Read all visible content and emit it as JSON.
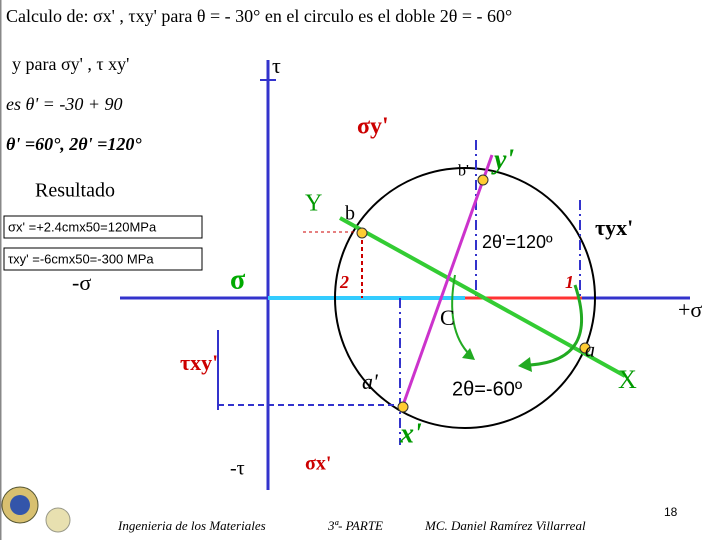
{
  "header": {
    "line1": "Calculo de:  σx' , τxy'  para  θ = - 30°  en el circulo es el doble 2θ = - 60°",
    "line2": "y  para  σy' ,  τ  xy'",
    "line3": "es  θ' = -30 + 90",
    "line4": "θ' =60°,  2θ' =120°"
  },
  "result": {
    "title": "Resultado",
    "sigma": "σx' =+2.4cmx50=120MPa",
    "tau": "τxy' =-6cmx50=-300 MPa"
  },
  "diagram": {
    "tau_axis": "τ",
    "neg_tau": "-τ",
    "neg_sigma": "-σ",
    "pos_sigma": "+σ",
    "sigma": "σ",
    "sigma_y": "σy'",
    "sigma_x": "σx'",
    "tau_xy": "τxy'",
    "tau_yx": "τyx'",
    "b_prime": "b'",
    "y_prime": "y'",
    "Y": "Y",
    "b": "b",
    "two_theta_prime": "2θ'=120º",
    "two": "2",
    "one": "1",
    "C": "C",
    "a": "a",
    "a_prime": "a'",
    "two_theta": "2θ=-60º",
    "X": "X",
    "x_prime": "x'"
  },
  "footer": {
    "course": "Ingenieria de los Materiales",
    "part": "3ª- PARTE",
    "author": "MC. Daniel Ramírez Villarreal",
    "page": "18"
  }
}
